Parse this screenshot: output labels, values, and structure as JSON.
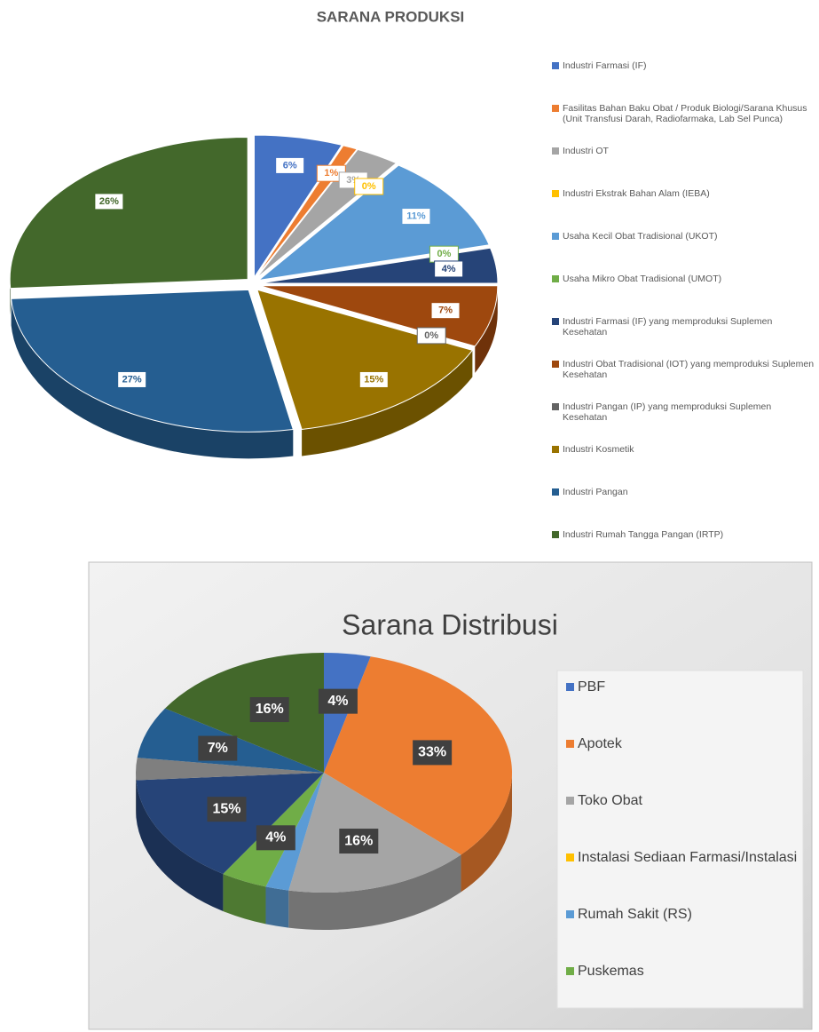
{
  "chart_data": [
    {
      "type": "pie",
      "title": "SARANA PRODUKSI",
      "categories": [
        "Industri Farmasi (IF)",
        "Fasilitas Bahan Baku Obat / Produk Biologi/Sarana Khusus (Unit Transfusi Darah, Radiofarmaka, Lab Sel Punca)",
        "Industri OT",
        "Industri Ekstrak Bahan Alam (IEBA)",
        "Usaha Kecil Obat Tradisional (UKOT)",
        "Usaha Mikro Obat Tradisional (UMOT)",
        "Industri Farmasi (IF) yang memproduksi Suplemen Kesehatan",
        "Industri Obat Tradisional (IOT) yang memproduksi Suplemen Kesehatan",
        "Industri Pangan (IP) yang memproduksi Suplemen Kesehatan",
        "Industri Kosmetik",
        "Industri Pangan",
        "Industri Rumah Tangga Pangan (IRTP)"
      ],
      "values": [
        6,
        1,
        3,
        0,
        11,
        0,
        4,
        7,
        0,
        15,
        27,
        26
      ],
      "value_labels": [
        "6%",
        "1%",
        "3%",
        "0%",
        "11%",
        "0%",
        "4%",
        "7%",
        "0%",
        "15%",
        "27%",
        "26%"
      ],
      "colors": [
        "#4472c4",
        "#ed7d31",
        "#a5a5a5",
        "#ffc000",
        "#5b9bd5",
        "#70ad47",
        "#264478",
        "#9e480e",
        "#636363",
        "#997300",
        "#255e91",
        "#43682b"
      ]
    },
    {
      "type": "pie",
      "title": "Sarana Distribusi",
      "categories": [
        "PBF",
        "Apotek",
        "Toko Obat",
        "Instalasi Sediaan Farmasi/Instalasi",
        "Rumah Sakit (RS)",
        "Puskemas",
        null,
        null,
        null,
        null
      ],
      "values": [
        4,
        33,
        16,
        0,
        2,
        4,
        15,
        3,
        7,
        16
      ],
      "value_labels": [
        "4%",
        "33%",
        "16%",
        null,
        null,
        "4%",
        "15%",
        null,
        "7%",
        "16%"
      ],
      "colors": [
        "#4472c4",
        "#ed7d31",
        "#a5a5a5",
        "#ffc000",
        "#5b9bd5",
        "#70ad47",
        "#264478",
        "#7f7f7f",
        "#255e91",
        "#43682b"
      ]
    }
  ]
}
